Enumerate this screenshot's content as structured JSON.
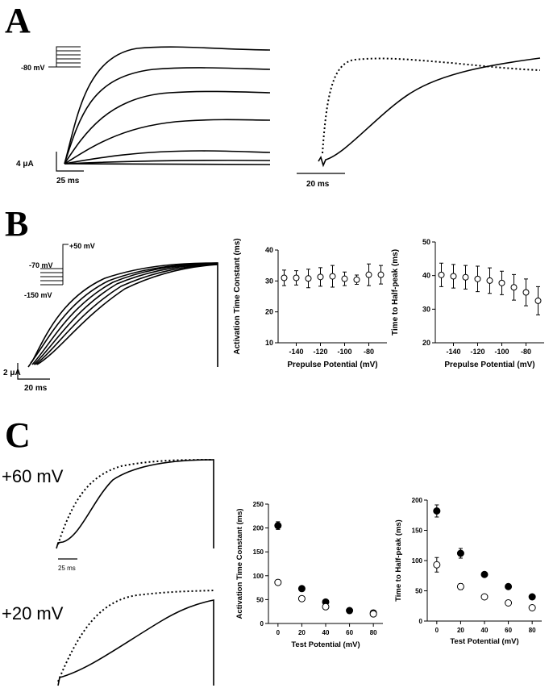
{
  "panels": {
    "A": {
      "letter": "A",
      "protocol_label": "-80 mV",
      "current_scale": "4 μA",
      "time_scale_left": "25 ms",
      "time_scale_right": "20 ms"
    },
    "B": {
      "letter": "B",
      "protocol_labels": [
        "+50 mV",
        "-70 mV",
        "-150 mV"
      ],
      "current_scale": "2 μA",
      "time_scale": "20 ms"
    },
    "C": {
      "letter": "C",
      "label_top": "+60 mV",
      "label_bottom": "+20 mV",
      "time_scale": "25 ms"
    }
  },
  "chart_data": [
    {
      "id": "B-activation",
      "type": "scatter",
      "xlabel": "Prepulse Potential (mV)",
      "ylabel": "Activation Time Constant (ms)",
      "xlim": [
        -155,
        -65
      ],
      "ylim": [
        10,
        40
      ],
      "xticks": [
        -140,
        -120,
        -100,
        -80
      ],
      "yticks": [
        10,
        20,
        30,
        40
      ],
      "series": [
        {
          "marker": "open",
          "x": [
            -150,
            -140,
            -130,
            -120,
            -110,
            -100,
            -90,
            -80,
            -70
          ],
          "y": [
            31,
            31,
            30.8,
            31.3,
            31.5,
            30.7,
            30.4,
            32,
            32
          ],
          "err": [
            2.5,
            2.3,
            3,
            3,
            3.5,
            2.2,
            1.5,
            3.5,
            3
          ]
        }
      ]
    },
    {
      "id": "B-halfpeak",
      "type": "scatter",
      "xlabel": "Prepulse Potential (mV)",
      "ylabel": "Time to Half-peak (ms)",
      "xlim": [
        -155,
        -65
      ],
      "ylim": [
        20,
        50
      ],
      "xticks": [
        -140,
        -120,
        -100,
        -80
      ],
      "yticks": [
        20,
        30,
        40,
        50
      ],
      "series": [
        {
          "marker": "open",
          "x": [
            -150,
            -140,
            -130,
            -120,
            -110,
            -100,
            -90,
            -80,
            -70
          ],
          "y": [
            40.2,
            39.8,
            39.5,
            39,
            38.5,
            37.8,
            36.5,
            35,
            32.5
          ],
          "err": [
            3.5,
            3.5,
            3.5,
            3.8,
            3.8,
            3.5,
            3.8,
            4,
            4.2
          ]
        }
      ]
    },
    {
      "id": "C-activation",
      "type": "scatter",
      "xlabel": "Test Potential (mV)",
      "ylabel": "Activation Time Constant (ms)",
      "xlim": [
        -8,
        88
      ],
      "ylim": [
        0,
        250
      ],
      "xticks": [
        0,
        20,
        40,
        60,
        80
      ],
      "yticks": [
        0,
        50,
        100,
        150,
        200,
        250
      ],
      "series": [
        {
          "marker": "filled",
          "x": [
            0,
            20,
            40,
            60,
            80
          ],
          "y": [
            205,
            73,
            45,
            27,
            22
          ],
          "err": [
            8,
            0,
            0,
            0,
            0
          ]
        },
        {
          "marker": "open",
          "x": [
            0,
            20,
            40,
            80
          ],
          "y": [
            86,
            52,
            35,
            20
          ],
          "err": [
            0,
            0,
            0,
            0
          ]
        }
      ]
    },
    {
      "id": "C-halfpeak",
      "type": "scatter",
      "xlabel": "Test Potential (mV)",
      "ylabel": "Time to Half-peak (ms)",
      "xlim": [
        -8,
        88
      ],
      "ylim": [
        0,
        200
      ],
      "xticks": [
        0,
        20,
        40,
        60,
        80
      ],
      "yticks": [
        0,
        50,
        100,
        150,
        200
      ],
      "series": [
        {
          "marker": "filled",
          "x": [
            0,
            20,
            40,
            60,
            80
          ],
          "y": [
            182,
            112,
            77,
            57,
            40
          ],
          "err": [
            10,
            8,
            0,
            0,
            0
          ]
        },
        {
          "marker": "open",
          "x": [
            0,
            20,
            40,
            60,
            80
          ],
          "y": [
            93,
            57,
            40,
            30,
            22
          ],
          "err": [
            12,
            5,
            0,
            0,
            0
          ]
        }
      ]
    }
  ]
}
